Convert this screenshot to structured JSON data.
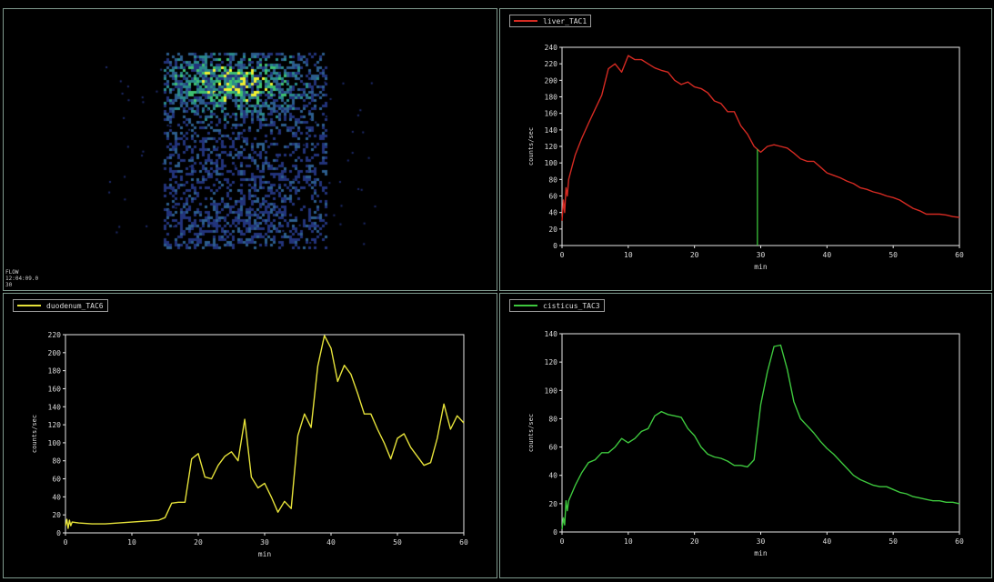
{
  "image_panel": {
    "overlay_lines": [
      "FLOW",
      "12:04:09.0",
      "30"
    ]
  },
  "chart_data": [
    {
      "type": "line",
      "legend": "liver_TAC1",
      "color": "#d42a22",
      "xlabel": "min",
      "ylabel": "counts/sec",
      "xlim": [
        0,
        60
      ],
      "ylim": [
        0,
        240
      ],
      "xticks": [
        0,
        10,
        20,
        30,
        40,
        50,
        60
      ],
      "yticks": [
        0,
        20,
        40,
        60,
        80,
        100,
        120,
        140,
        160,
        180,
        200,
        220,
        240
      ],
      "marker_x": 29.5,
      "marker_color": "#3ed23e",
      "x": [
        0,
        0.2,
        0.4,
        0.6,
        0.8,
        1,
        1.5,
        2,
        3,
        4,
        5,
        6,
        7,
        8,
        9,
        10,
        11,
        12,
        13,
        14,
        15,
        16,
        17,
        18,
        19,
        20,
        21,
        22,
        23,
        24,
        25,
        26,
        27,
        28,
        29,
        30,
        31,
        32,
        33,
        34,
        35,
        36,
        37,
        38,
        39,
        40,
        41,
        42,
        43,
        44,
        45,
        46,
        47,
        48,
        49,
        50,
        51,
        52,
        53,
        54,
        55,
        56,
        57,
        58,
        59,
        60
      ],
      "y": [
        30,
        55,
        40,
        70,
        60,
        80,
        95,
        110,
        130,
        148,
        165,
        182,
        214,
        220,
        210,
        230,
        225,
        225,
        220,
        215,
        212,
        210,
        200,
        195,
        198,
        192,
        190,
        185,
        175,
        172,
        162,
        162,
        145,
        135,
        120,
        113,
        120,
        122,
        120,
        118,
        112,
        105,
        102,
        102,
        95,
        88,
        85,
        82,
        78,
        75,
        70,
        68,
        65,
        63,
        60,
        58,
        55,
        50,
        45,
        42,
        38,
        38,
        38,
        37,
        35,
        34
      ]
    },
    {
      "type": "line",
      "legend": "duodenum_TAC6",
      "color": "#e6e23a",
      "xlabel": "min",
      "ylabel": "counts/sec",
      "xlim": [
        0,
        60
      ],
      "ylim": [
        0,
        220
      ],
      "xticks": [
        0,
        10,
        20,
        30,
        40,
        50,
        60
      ],
      "yticks": [
        0,
        20,
        40,
        60,
        80,
        100,
        120,
        140,
        160,
        180,
        200,
        220
      ],
      "x": [
        0,
        0.2,
        0.4,
        0.6,
        0.8,
        1,
        2,
        4,
        6,
        8,
        10,
        12,
        14,
        15,
        16,
        17,
        18,
        19,
        20,
        21,
        22,
        23,
        24,
        25,
        26,
        27,
        28,
        29,
        30,
        31,
        32,
        33,
        34,
        35,
        36,
        37,
        38,
        39,
        40,
        41,
        42,
        43,
        44,
        45,
        46,
        47,
        48,
        49,
        50,
        51,
        52,
        53,
        54,
        55,
        56,
        57,
        58,
        59,
        60
      ],
      "y": [
        8,
        15,
        5,
        14,
        8,
        12,
        11,
        10,
        10,
        11,
        12,
        13,
        14,
        17,
        33,
        34,
        34,
        82,
        88,
        62,
        60,
        75,
        85,
        90,
        80,
        126,
        62,
        50,
        55,
        40,
        23,
        35,
        27,
        108,
        132,
        117,
        185,
        219,
        205,
        168,
        186,
        176,
        155,
        132,
        132,
        115,
        100,
        82,
        105,
        110,
        95,
        85,
        75,
        78,
        105,
        143,
        115,
        130,
        122
      ]
    },
    {
      "type": "line",
      "legend": "cisticus_TAC3",
      "color": "#3ec83e",
      "xlabel": "min",
      "ylabel": "counts/sec",
      "xlim": [
        0,
        60
      ],
      "ylim": [
        0,
        140
      ],
      "xticks": [
        0,
        10,
        20,
        30,
        40,
        50,
        60
      ],
      "yticks": [
        0,
        20,
        40,
        60,
        80,
        100,
        120,
        140
      ],
      "x": [
        0,
        0.2,
        0.4,
        0.6,
        0.8,
        1,
        2,
        3,
        4,
        5,
        6,
        7,
        8,
        9,
        10,
        11,
        12,
        13,
        14,
        15,
        16,
        17,
        18,
        19,
        20,
        21,
        22,
        23,
        24,
        25,
        26,
        27,
        28,
        29,
        30,
        31,
        32,
        33,
        34,
        35,
        36,
        37,
        38,
        39,
        40,
        41,
        42,
        43,
        44,
        45,
        46,
        47,
        48,
        49,
        50,
        51,
        52,
        53,
        54,
        55,
        56,
        57,
        58,
        59,
        60
      ],
      "y": [
        2,
        10,
        5,
        22,
        15,
        22,
        33,
        42,
        49,
        51,
        56,
        56,
        60,
        66,
        63,
        66,
        71,
        73,
        82,
        85,
        83,
        82,
        81,
        73,
        68,
        60,
        55,
        53,
        52,
        50,
        47,
        47,
        46,
        51,
        90,
        113,
        131,
        132,
        115,
        92,
        80,
        75,
        70,
        64,
        59,
        55,
        50,
        45,
        40,
        37,
        35,
        33,
        32,
        32,
        30,
        28,
        27,
        25,
        24,
        23,
        22,
        22,
        21,
        21,
        20
      ]
    }
  ]
}
